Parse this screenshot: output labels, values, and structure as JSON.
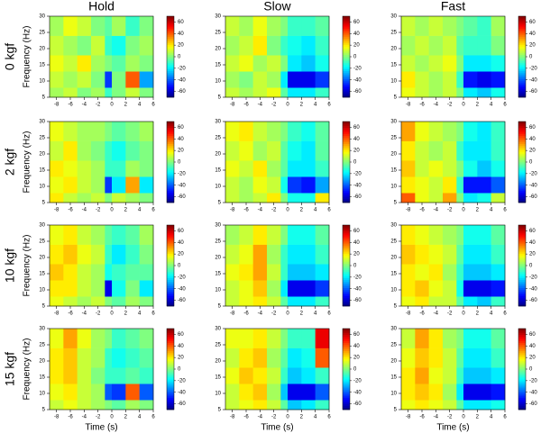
{
  "column_titles": [
    "Hold",
    "Slow",
    "Fast"
  ],
  "row_labels": [
    "0 kgf",
    "2 kgf",
    "10 kgf",
    "15 kgf"
  ],
  "chart_data": [
    {
      "type": "heatmap",
      "colormap": "jet",
      "ylabel": "Frequency (Hz)",
      "xbins": [
        -9,
        -7,
        -5,
        -3,
        -1,
        0,
        2,
        4,
        6
      ],
      "ybins": [
        5,
        8,
        13,
        18,
        24,
        30
      ],
      "xlim": [
        -9,
        6
      ],
      "ylim": [
        5,
        30
      ],
      "xticks": [
        -8,
        -6,
        -4,
        -2,
        0,
        2,
        4,
        6
      ],
      "yticks": [
        5,
        10,
        15,
        20,
        25,
        30
      ],
      "clim": [
        -70,
        70
      ],
      "cticks": [
        60,
        40,
        20,
        0,
        -20,
        -40,
        -60
      ],
      "values": [
        [
          5,
          10,
          0,
          5,
          -10,
          0,
          10,
          0
        ],
        [
          10,
          5,
          10,
          0,
          -45,
          0,
          40,
          -30
        ],
        [
          15,
          10,
          20,
          5,
          0,
          -5,
          5,
          0
        ],
        [
          10,
          5,
          0,
          10,
          -10,
          -15,
          0,
          5
        ],
        [
          5,
          15,
          10,
          0,
          -5,
          5,
          -10,
          0
        ]
      ]
    },
    {
      "type": "heatmap",
      "colormap": "jet",
      "xbins": [
        -9,
        -7,
        -5,
        -3,
        -1,
        0,
        2,
        4,
        6
      ],
      "ybins": [
        5,
        8,
        13,
        18,
        24,
        30
      ],
      "xlim": [
        -9,
        6
      ],
      "ylim": [
        5,
        30
      ],
      "xticks": [
        -8,
        -6,
        -4,
        -2,
        0,
        2,
        4,
        6
      ],
      "yticks": [
        5,
        10,
        15,
        20,
        25,
        30
      ],
      "clim": [
        -70,
        70
      ],
      "cticks": [
        60,
        40,
        20,
        0,
        -20,
        -40,
        -60
      ],
      "values": [
        [
          10,
          5,
          10,
          15,
          -5,
          -20,
          -20,
          -10
        ],
        [
          5,
          0,
          10,
          5,
          -20,
          -55,
          -55,
          -45
        ],
        [
          10,
          15,
          5,
          10,
          0,
          -20,
          -25,
          -15
        ],
        [
          5,
          10,
          20,
          0,
          -10,
          -15,
          -20,
          -10
        ],
        [
          10,
          5,
          15,
          5,
          0,
          -10,
          -10,
          -5
        ]
      ]
    },
    {
      "type": "heatmap",
      "colormap": "jet",
      "xbins": [
        -9,
        -7,
        -5,
        -3,
        -1,
        0,
        2,
        4,
        6
      ],
      "ybins": [
        5,
        8,
        13,
        18,
        24,
        30
      ],
      "xlim": [
        -9,
        6
      ],
      "ylim": [
        5,
        30
      ],
      "xticks": [
        -8,
        -6,
        -4,
        -2,
        0,
        2,
        4,
        6
      ],
      "yticks": [
        5,
        10,
        15,
        20,
        25,
        30
      ],
      "clim": [
        -70,
        70
      ],
      "cticks": [
        60,
        40,
        20,
        0,
        -20,
        -40,
        -60
      ],
      "values": [
        [
          15,
          10,
          5,
          10,
          0,
          -20,
          -25,
          -15
        ],
        [
          20,
          10,
          5,
          10,
          -10,
          -50,
          -55,
          -50
        ],
        [
          10,
          5,
          10,
          15,
          0,
          -20,
          -20,
          -15
        ],
        [
          5,
          10,
          5,
          10,
          -5,
          -10,
          -10,
          0
        ],
        [
          10,
          5,
          10,
          5,
          0,
          -5,
          -10,
          5
        ]
      ]
    },
    {
      "type": "heatmap",
      "colormap": "jet",
      "ylabel": "Frequency (Hz)",
      "xbins": [
        -9,
        -7,
        -5,
        -3,
        -1,
        0,
        2,
        4,
        6
      ],
      "ybins": [
        5,
        8,
        13,
        18,
        24,
        30
      ],
      "xlim": [
        -9,
        6
      ],
      "ylim": [
        5,
        30
      ],
      "xticks": [
        -8,
        -6,
        -4,
        -2,
        0,
        2,
        4,
        6
      ],
      "yticks": [
        5,
        10,
        15,
        20,
        25,
        30
      ],
      "clim": [
        -70,
        70
      ],
      "cticks": [
        60,
        40,
        20,
        0,
        -20,
        -40,
        -60
      ],
      "values": [
        [
          20,
          10,
          5,
          10,
          0,
          10,
          5,
          0
        ],
        [
          15,
          20,
          10,
          5,
          -45,
          -20,
          30,
          -20
        ],
        [
          20,
          15,
          10,
          5,
          -10,
          -10,
          5,
          0
        ],
        [
          10,
          20,
          5,
          0,
          -10,
          -15,
          -5,
          0
        ],
        [
          15,
          10,
          5,
          5,
          0,
          -5,
          0,
          5
        ]
      ]
    },
    {
      "type": "heatmap",
      "colormap": "jet",
      "xbins": [
        -9,
        -7,
        -5,
        -3,
        -1,
        0,
        2,
        4,
        6
      ],
      "ybins": [
        5,
        8,
        13,
        18,
        24,
        30
      ],
      "xlim": [
        -9,
        6
      ],
      "ylim": [
        5,
        30
      ],
      "xticks": [
        -8,
        -6,
        -4,
        -2,
        0,
        2,
        4,
        6
      ],
      "yticks": [
        5,
        10,
        15,
        20,
        25,
        30
      ],
      "clim": [
        -70,
        70
      ],
      "cticks": [
        60,
        40,
        20,
        0,
        -20,
        -40,
        -60
      ],
      "values": [
        [
          10,
          5,
          10,
          20,
          0,
          -15,
          -15,
          20
        ],
        [
          10,
          5,
          15,
          10,
          -15,
          -45,
          -50,
          -30
        ],
        [
          15,
          10,
          20,
          5,
          -5,
          -20,
          -20,
          -10
        ],
        [
          10,
          15,
          5,
          10,
          -5,
          -15,
          -20,
          -5
        ],
        [
          15,
          20,
          10,
          5,
          0,
          -10,
          -15,
          -5
        ]
      ]
    },
    {
      "type": "heatmap",
      "colormap": "jet",
      "xbins": [
        -9,
        -7,
        -5,
        -3,
        -1,
        0,
        2,
        4,
        6
      ],
      "ybins": [
        5,
        8,
        13,
        18,
        24,
        30
      ],
      "xlim": [
        -9,
        6
      ],
      "ylim": [
        5,
        30
      ],
      "xticks": [
        -8,
        -6,
        -4,
        -2,
        0,
        2,
        4,
        6
      ],
      "yticks": [
        5,
        10,
        15,
        20,
        25,
        30
      ],
      "clim": [
        -70,
        70
      ],
      "cticks": [
        60,
        40,
        20,
        0,
        -20,
        -40,
        -60
      ],
      "values": [
        [
          40,
          15,
          10,
          30,
          0,
          -20,
          -15,
          10
        ],
        [
          20,
          15,
          10,
          20,
          -10,
          -50,
          -50,
          -40
        ],
        [
          25,
          10,
          15,
          10,
          0,
          -15,
          -25,
          -15
        ],
        [
          20,
          10,
          5,
          10,
          -10,
          -20,
          -20,
          -10
        ],
        [
          30,
          15,
          10,
          5,
          0,
          -15,
          -20,
          -10
        ]
      ]
    },
    {
      "type": "heatmap",
      "colormap": "jet",
      "ylabel": "Frequency (Hz)",
      "xbins": [
        -9,
        -7,
        -5,
        -3,
        -1,
        0,
        2,
        4,
        6
      ],
      "ybins": [
        5,
        8,
        13,
        18,
        24,
        30
      ],
      "xlim": [
        -9,
        6
      ],
      "ylim": [
        5,
        30
      ],
      "xticks": [
        -8,
        -6,
        -4,
        -2,
        0,
        2,
        4,
        6
      ],
      "yticks": [
        5,
        10,
        15,
        20,
        25,
        30
      ],
      "clim": [
        -70,
        70
      ],
      "cticks": [
        60,
        40,
        20,
        0,
        -20,
        -40,
        -60
      ],
      "values": [
        [
          15,
          10,
          5,
          10,
          0,
          -5,
          5,
          0
        ],
        [
          20,
          20,
          10,
          5,
          -55,
          -15,
          0,
          -20
        ],
        [
          25,
          20,
          10,
          5,
          -15,
          -10,
          -5,
          -5
        ],
        [
          20,
          25,
          15,
          10,
          -10,
          -20,
          -10,
          0
        ],
        [
          15,
          20,
          10,
          5,
          -5,
          -10,
          -5,
          5
        ]
      ]
    },
    {
      "type": "heatmap",
      "colormap": "jet",
      "xbins": [
        -9,
        -7,
        -5,
        -3,
        -1,
        0,
        2,
        4,
        6
      ],
      "ybins": [
        5,
        8,
        13,
        18,
        24,
        30
      ],
      "xlim": [
        -9,
        6
      ],
      "ylim": [
        5,
        30
      ],
      "xticks": [
        -8,
        -6,
        -4,
        -2,
        0,
        2,
        4,
        6
      ],
      "yticks": [
        5,
        10,
        15,
        20,
        25,
        30
      ],
      "clim": [
        -70,
        70
      ],
      "cticks": [
        60,
        40,
        20,
        0,
        -20,
        -40,
        -60
      ],
      "values": [
        [
          10,
          15,
          20,
          10,
          -5,
          -20,
          -20,
          -10
        ],
        [
          10,
          15,
          25,
          5,
          -20,
          -55,
          -55,
          -45
        ],
        [
          15,
          20,
          30,
          10,
          -10,
          -25,
          -25,
          -20
        ],
        [
          10,
          15,
          30,
          5,
          -10,
          -20,
          -20,
          -10
        ],
        [
          5,
          10,
          20,
          10,
          0,
          -15,
          -15,
          -5
        ]
      ]
    },
    {
      "type": "heatmap",
      "colormap": "jet",
      "xbins": [
        -9,
        -7,
        -5,
        -3,
        -1,
        0,
        2,
        4,
        6
      ],
      "ybins": [
        5,
        8,
        13,
        18,
        24,
        30
      ],
      "xlim": [
        -9,
        6
      ],
      "ylim": [
        5,
        30
      ],
      "xticks": [
        -8,
        -6,
        -4,
        -2,
        0,
        2,
        4,
        6
      ],
      "yticks": [
        5,
        10,
        15,
        20,
        25,
        30
      ],
      "clim": [
        -70,
        70
      ],
      "cticks": [
        60,
        40,
        20,
        0,
        -20,
        -40,
        -60
      ],
      "values": [
        [
          15,
          20,
          10,
          10,
          -5,
          -20,
          -25,
          -10
        ],
        [
          20,
          25,
          15,
          10,
          -15,
          -55,
          -55,
          -50
        ],
        [
          20,
          15,
          20,
          5,
          -10,
          -25,
          -25,
          -20
        ],
        [
          25,
          20,
          15,
          10,
          -5,
          -20,
          -20,
          -10
        ],
        [
          20,
          15,
          10,
          5,
          0,
          -15,
          -15,
          -5
        ]
      ]
    },
    {
      "type": "heatmap",
      "colormap": "jet",
      "ylabel": "Frequency (Hz)",
      "xlabel": "Time (s)",
      "xbins": [
        -9,
        -7,
        -5,
        -3,
        -1,
        0,
        2,
        4,
        6
      ],
      "ybins": [
        5,
        8,
        13,
        18,
        24,
        30
      ],
      "xlim": [
        -9,
        6
      ],
      "ylim": [
        5,
        30
      ],
      "xticks": [
        -8,
        -6,
        -4,
        -2,
        0,
        2,
        4,
        6
      ],
      "yticks": [
        5,
        10,
        15,
        20,
        25,
        30
      ],
      "clim": [
        -70,
        70
      ],
      "cticks": [
        60,
        40,
        20,
        0,
        -20,
        -40,
        -60
      ],
      "values": [
        [
          10,
          15,
          10,
          5,
          0,
          -5,
          5,
          0
        ],
        [
          15,
          20,
          10,
          5,
          -40,
          -45,
          40,
          -40
        ],
        [
          20,
          25,
          10,
          0,
          -10,
          -10,
          -5,
          -10
        ],
        [
          20,
          25,
          10,
          5,
          -10,
          -15,
          -10,
          -5
        ],
        [
          15,
          30,
          15,
          5,
          0,
          -10,
          -5,
          0
        ]
      ]
    },
    {
      "type": "heatmap",
      "colormap": "jet",
      "xlabel": "Time (s)",
      "xbins": [
        -9,
        -7,
        -5,
        -3,
        -1,
        0,
        2,
        4,
        6
      ],
      "ybins": [
        5,
        8,
        13,
        18,
        24,
        30
      ],
      "xlim": [
        -9,
        6
      ],
      "ylim": [
        5,
        30
      ],
      "xticks": [
        -8,
        -6,
        -4,
        -2,
        0,
        2,
        4,
        6
      ],
      "yticks": [
        5,
        10,
        15,
        20,
        25,
        30
      ],
      "clim": [
        -70,
        70
      ],
      "cticks": [
        60,
        40,
        20,
        0,
        -20,
        -40,
        -60
      ],
      "values": [
        [
          10,
          15,
          20,
          10,
          -5,
          -25,
          -20,
          -10
        ],
        [
          10,
          20,
          25,
          5,
          -25,
          -55,
          -55,
          -40
        ],
        [
          15,
          25,
          20,
          10,
          -10,
          -25,
          -20,
          -10
        ],
        [
          10,
          20,
          25,
          5,
          -5,
          -20,
          -15,
          40
        ],
        [
          15,
          15,
          20,
          10,
          0,
          -10,
          -10,
          55
        ]
      ]
    },
    {
      "type": "heatmap",
      "colormap": "jet",
      "xlabel": "Time (s)",
      "xbins": [
        -9,
        -7,
        -5,
        -3,
        -1,
        0,
        2,
        4,
        6
      ],
      "ybins": [
        5,
        8,
        13,
        18,
        24,
        30
      ],
      "xlim": [
        -9,
        6
      ],
      "ylim": [
        5,
        30
      ],
      "xticks": [
        -8,
        -6,
        -4,
        -2,
        0,
        2,
        4,
        6
      ],
      "yticks": [
        5,
        10,
        15,
        20,
        25,
        30
      ],
      "clim": [
        -70,
        70
      ],
      "cticks": [
        60,
        40,
        20,
        0,
        -20,
        -40,
        -60
      ],
      "values": [
        [
          15,
          20,
          15,
          10,
          -5,
          -20,
          -20,
          -15
        ],
        [
          20,
          25,
          20,
          5,
          -20,
          -55,
          -55,
          -50
        ],
        [
          20,
          30,
          15,
          10,
          -10,
          -25,
          -25,
          -20
        ],
        [
          15,
          25,
          20,
          10,
          -5,
          -20,
          -20,
          -10
        ],
        [
          10,
          30,
          20,
          5,
          0,
          -15,
          -15,
          -5
        ]
      ]
    }
  ]
}
